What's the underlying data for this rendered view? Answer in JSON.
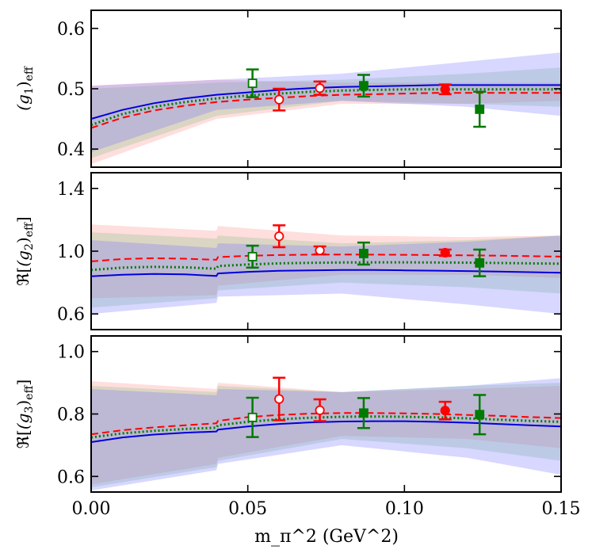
{
  "chart_data": {
    "type": "scatter",
    "xlabel": "m_π^2 (GeV^2)",
    "x_ticks": [
      "0.00",
      "0.05",
      "0.10",
      "0.15"
    ],
    "xlim": [
      0.0,
      0.15
    ],
    "colors": {
      "blue": "#0000dd",
      "red": "#ff0000",
      "green": "#007a00",
      "blue_band": "#7070ff",
      "red_band": "#ff8a8a",
      "green_band": "#7fbf7f"
    },
    "panels": [
      {
        "ylabel_main": "(g",
        "ylabel_sub": "1",
        "ylabel_close": ")",
        "ylabel_eff": "eff",
        "ylabel_prefix": "",
        "ylim": [
          0.37,
          0.63
        ],
        "y_ticks": [
          "0.4",
          "0.5",
          "0.6"
        ],
        "curves": {
          "blue_solid": {
            "x": [
              0.0,
              0.01,
              0.02,
              0.03,
              0.04,
              0.05,
              0.06,
              0.07,
              0.08,
              0.09,
              0.1,
              0.11,
              0.12,
              0.13,
              0.14,
              0.15
            ],
            "y": [
              0.45,
              0.465,
              0.476,
              0.484,
              0.49,
              0.494,
              0.498,
              0.501,
              0.503,
              0.504,
              0.505,
              0.506,
              0.506,
              0.506,
              0.506,
              0.506
            ]
          },
          "red_dashed": {
            "x": [
              0.0,
              0.01,
              0.02,
              0.03,
              0.04,
              0.05,
              0.06,
              0.07,
              0.08,
              0.09,
              0.1,
              0.11,
              0.12,
              0.13,
              0.14,
              0.15
            ],
            "y": [
              0.435,
              0.452,
              0.464,
              0.472,
              0.478,
              0.482,
              0.485,
              0.488,
              0.49,
              0.491,
              0.492,
              0.493,
              0.493,
              0.493,
              0.493,
              0.493
            ]
          },
          "green_dotted": {
            "x": [
              0.0,
              0.01,
              0.02,
              0.03,
              0.04,
              0.05,
              0.06,
              0.07,
              0.08,
              0.09,
              0.1,
              0.11,
              0.12,
              0.13,
              0.14,
              0.15
            ],
            "y": [
              0.44,
              0.458,
              0.47,
              0.478,
              0.484,
              0.489,
              0.492,
              0.495,
              0.497,
              0.498,
              0.499,
              0.499,
              0.499,
              0.499,
              0.499,
              0.499
            ]
          }
        },
        "bands": {
          "red": {
            "x": [
              0.0,
              0.04,
              0.08,
              0.12,
              0.15
            ],
            "lo": [
              0.375,
              0.45,
              0.475,
              0.475,
              0.48
            ],
            "hi": [
              0.505,
              0.515,
              0.51,
              0.51,
              0.51
            ]
          },
          "green": {
            "x": [
              0.0,
              0.04,
              0.08,
              0.12,
              0.15
            ],
            "lo": [
              0.385,
              0.455,
              0.48,
              0.475,
              0.47
            ],
            "hi": [
              0.5,
              0.51,
              0.515,
              0.525,
              0.535
            ]
          },
          "blue": {
            "x": [
              0.0,
              0.04,
              0.08,
              0.12,
              0.15
            ],
            "lo": [
              0.395,
              0.465,
              0.48,
              0.47,
              0.455
            ],
            "hi": [
              0.505,
              0.515,
              0.525,
              0.545,
              0.56
            ]
          }
        },
        "points": [
          {
            "x": 0.0515,
            "y": 0.509,
            "err": 0.023,
            "color": "green",
            "marker": "square-open"
          },
          {
            "x": 0.06,
            "y": 0.482,
            "err": 0.018,
            "color": "red",
            "marker": "circle-open"
          },
          {
            "x": 0.073,
            "y": 0.501,
            "err": 0.011,
            "color": "red",
            "marker": "circle-open"
          },
          {
            "x": 0.087,
            "y": 0.505,
            "err": 0.018,
            "color": "green",
            "marker": "square-filled"
          },
          {
            "x": 0.113,
            "y": 0.499,
            "err": 0.008,
            "color": "red",
            "marker": "circle-filled"
          },
          {
            "x": 0.124,
            "y": 0.466,
            "err": 0.029,
            "color": "green",
            "marker": "square-filled"
          }
        ]
      },
      {
        "ylabel_main": "(g",
        "ylabel_sub": "2",
        "ylabel_close": ")",
        "ylabel_eff": "eff",
        "ylabel_prefix": "ℜ",
        "ylim": [
          0.5,
          1.5
        ],
        "y_ticks": [
          "0.6",
          "1.0",
          "1.4"
        ],
        "curves": {
          "blue_solid": {
            "x": [
              0.0,
              0.01,
              0.02,
              0.03,
              0.04,
              0.0405,
              0.05,
              0.06,
              0.07,
              0.08,
              0.09,
              0.1,
              0.11,
              0.12,
              0.13,
              0.14,
              0.15
            ],
            "y": [
              0.84,
              0.85,
              0.855,
              0.852,
              0.842,
              0.858,
              0.868,
              0.875,
              0.878,
              0.88,
              0.88,
              0.878,
              0.876,
              0.873,
              0.87,
              0.866,
              0.862
            ]
          },
          "red_dashed": {
            "x": [
              0.0,
              0.01,
              0.02,
              0.03,
              0.04,
              0.0405,
              0.05,
              0.06,
              0.07,
              0.08,
              0.09,
              0.1,
              0.11,
              0.12,
              0.13,
              0.14,
              0.15
            ],
            "y": [
              0.935,
              0.95,
              0.955,
              0.952,
              0.945,
              0.962,
              0.97,
              0.975,
              0.978,
              0.979,
              0.978,
              0.977,
              0.975,
              0.973,
              0.971,
              0.968,
              0.965
            ]
          },
          "green_dotted": {
            "x": [
              0.0,
              0.01,
              0.02,
              0.03,
              0.04,
              0.0405,
              0.05,
              0.06,
              0.07,
              0.08,
              0.09,
              0.1,
              0.11,
              0.12,
              0.13,
              0.14,
              0.15
            ],
            "y": [
              0.88,
              0.895,
              0.9,
              0.897,
              0.888,
              0.905,
              0.915,
              0.922,
              0.926,
              0.928,
              0.929,
              0.929,
              0.928,
              0.927,
              0.925,
              0.922,
              0.92
            ]
          }
        },
        "bands": {
          "red": {
            "x": [
              0.0,
              0.04,
              0.0405,
              0.08,
              0.12,
              0.15
            ],
            "lo": [
              0.7,
              0.72,
              0.78,
              0.85,
              0.85,
              0.83
            ],
            "hi": [
              1.17,
              1.13,
              1.16,
              1.1,
              1.09,
              1.1
            ]
          },
          "green": {
            "x": [
              0.0,
              0.04,
              0.0405,
              0.08,
              0.12,
              0.15
            ],
            "lo": [
              0.64,
              0.7,
              0.75,
              0.8,
              0.77,
              0.73
            ],
            "hi": [
              1.12,
              1.08,
              1.1,
              1.05,
              1.07,
              1.1
            ]
          },
          "blue": {
            "x": [
              0.0,
              0.04,
              0.0405,
              0.08,
              0.12,
              0.15
            ],
            "lo": [
              0.6,
              0.67,
              0.71,
              0.73,
              0.66,
              0.6
            ],
            "hi": [
              1.07,
              1.02,
              1.05,
              1.03,
              1.06,
              1.1
            ]
          }
        },
        "points": [
          {
            "x": 0.0515,
            "y": 0.965,
            "err": 0.07,
            "color": "green",
            "marker": "square-open"
          },
          {
            "x": 0.06,
            "y": 1.095,
            "err": 0.07,
            "color": "red",
            "marker": "circle-open"
          },
          {
            "x": 0.073,
            "y": 1.005,
            "err": 0.025,
            "color": "red",
            "marker": "circle-open"
          },
          {
            "x": 0.087,
            "y": 0.985,
            "err": 0.07,
            "color": "green",
            "marker": "square-filled"
          },
          {
            "x": 0.113,
            "y": 0.99,
            "err": 0.02,
            "color": "red",
            "marker": "circle-filled"
          },
          {
            "x": 0.124,
            "y": 0.925,
            "err": 0.085,
            "color": "green",
            "marker": "square-filled"
          }
        ]
      },
      {
        "ylabel_main": "(g",
        "ylabel_sub": "3",
        "ylabel_close": ")",
        "ylabel_eff": "eff",
        "ylabel_prefix": "ℜ",
        "ylim": [
          0.55,
          1.05
        ],
        "y_ticks": [
          "0.6",
          "0.8",
          "1.0"
        ],
        "curves": {
          "blue_solid": {
            "x": [
              0.0,
              0.01,
              0.02,
              0.03,
              0.04,
              0.0405,
              0.05,
              0.06,
              0.07,
              0.08,
              0.09,
              0.1,
              0.11,
              0.12,
              0.13,
              0.14,
              0.15
            ],
            "y": [
              0.71,
              0.725,
              0.734,
              0.74,
              0.744,
              0.75,
              0.76,
              0.768,
              0.773,
              0.776,
              0.777,
              0.777,
              0.775,
              0.772,
              0.768,
              0.764,
              0.76
            ]
          },
          "red_dashed": {
            "x": [
              0.0,
              0.01,
              0.02,
              0.03,
              0.04,
              0.0405,
              0.05,
              0.06,
              0.07,
              0.08,
              0.09,
              0.1,
              0.11,
              0.12,
              0.13,
              0.14,
              0.15
            ],
            "y": [
              0.735,
              0.748,
              0.757,
              0.764,
              0.77,
              0.778,
              0.79,
              0.797,
              0.801,
              0.803,
              0.803,
              0.802,
              0.8,
              0.797,
              0.794,
              0.79,
              0.787
            ]
          },
          "green_dotted": {
            "x": [
              0.0,
              0.01,
              0.02,
              0.03,
              0.04,
              0.0405,
              0.05,
              0.06,
              0.07,
              0.08,
              0.09,
              0.1,
              0.11,
              0.12,
              0.13,
              0.14,
              0.15
            ],
            "y": [
              0.725,
              0.738,
              0.746,
              0.752,
              0.756,
              0.764,
              0.775,
              0.783,
              0.788,
              0.791,
              0.792,
              0.791,
              0.789,
              0.786,
              0.782,
              0.778,
              0.775
            ]
          }
        },
        "bands": {
          "red": {
            "x": [
              0.0,
              0.04,
              0.0405,
              0.08,
              0.12,
              0.15
            ],
            "lo": [
              0.575,
              0.64,
              0.66,
              0.73,
              0.72,
              0.69
            ],
            "hi": [
              0.905,
              0.88,
              0.9,
              0.87,
              0.88,
              0.89
            ]
          },
          "green": {
            "x": [
              0.0,
              0.04,
              0.0405,
              0.08,
              0.12,
              0.15
            ],
            "lo": [
              0.565,
              0.63,
              0.65,
              0.72,
              0.69,
              0.65
            ],
            "hi": [
              0.89,
              0.87,
              0.89,
              0.87,
              0.89,
              0.9
            ]
          },
          "blue": {
            "x": [
              0.0,
              0.04,
              0.0405,
              0.08,
              0.12,
              0.15
            ],
            "lo": [
              0.555,
              0.62,
              0.64,
              0.7,
              0.66,
              0.605
            ],
            "hi": [
              0.88,
              0.86,
              0.88,
              0.87,
              0.89,
              0.915
            ]
          }
        },
        "points": [
          {
            "x": 0.0515,
            "y": 0.789,
            "err": 0.063,
            "color": "green",
            "marker": "square-open"
          },
          {
            "x": 0.06,
            "y": 0.848,
            "err": 0.068,
            "color": "red",
            "marker": "circle-open"
          },
          {
            "x": 0.073,
            "y": 0.812,
            "err": 0.035,
            "color": "red",
            "marker": "circle-open"
          },
          {
            "x": 0.087,
            "y": 0.803,
            "err": 0.048,
            "color": "green",
            "marker": "square-filled"
          },
          {
            "x": 0.113,
            "y": 0.811,
            "err": 0.028,
            "color": "red",
            "marker": "circle-filled"
          },
          {
            "x": 0.124,
            "y": 0.798,
            "err": 0.063,
            "color": "green",
            "marker": "square-filled"
          }
        ]
      }
    ]
  }
}
